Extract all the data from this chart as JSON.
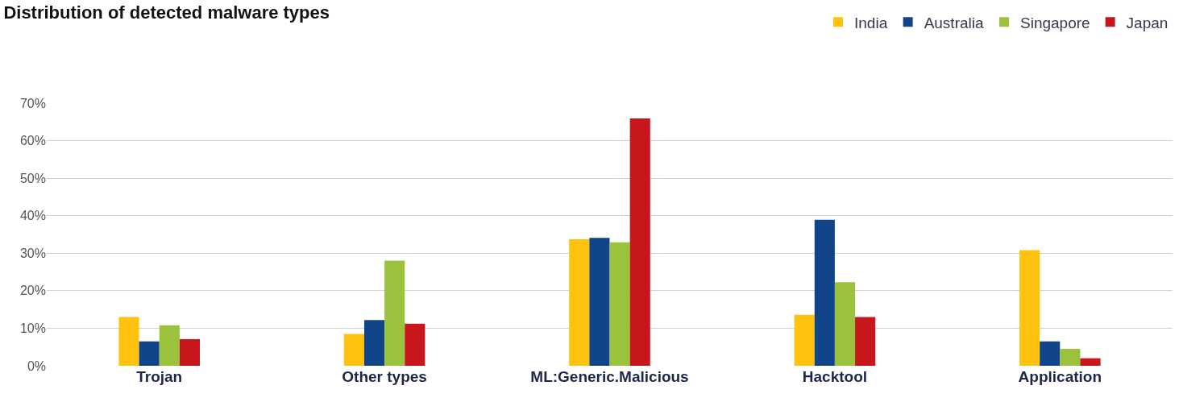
{
  "chart_data": {
    "type": "bar",
    "title": "Distribution of detected malware types",
    "categories": [
      "Trojan",
      "Other types",
      "ML:Generic.Malicious",
      "Hacktool",
      "Application"
    ],
    "series": [
      {
        "name": "India",
        "color": "#ffc20e",
        "values": [
          13,
          8.5,
          33.7,
          13.6,
          30.8
        ]
      },
      {
        "name": "Australia",
        "color": "#12448a",
        "values": [
          6.5,
          12.2,
          34.1,
          38.9,
          6.5
        ]
      },
      {
        "name": "Singapore",
        "color": "#9bc23c",
        "values": [
          10.8,
          28,
          32.9,
          22.3,
          4.5
        ]
      },
      {
        "name": "Japan",
        "color": "#c8161d",
        "values": [
          7.1,
          11.2,
          65.9,
          13,
          2
        ]
      }
    ],
    "ylim": [
      0,
      70
    ],
    "yticks": [
      {
        "value": 0,
        "label": "0%"
      },
      {
        "value": 10,
        "label": "10%"
      },
      {
        "value": 20,
        "label": "20%"
      },
      {
        "value": 30,
        "label": "30%"
      },
      {
        "value": 40,
        "label": "40%"
      },
      {
        "value": 50,
        "label": "50%"
      },
      {
        "value": 60,
        "label": "60%"
      },
      {
        "value": 70,
        "label": "70%"
      }
    ],
    "grid": "y",
    "legend": "top right"
  }
}
